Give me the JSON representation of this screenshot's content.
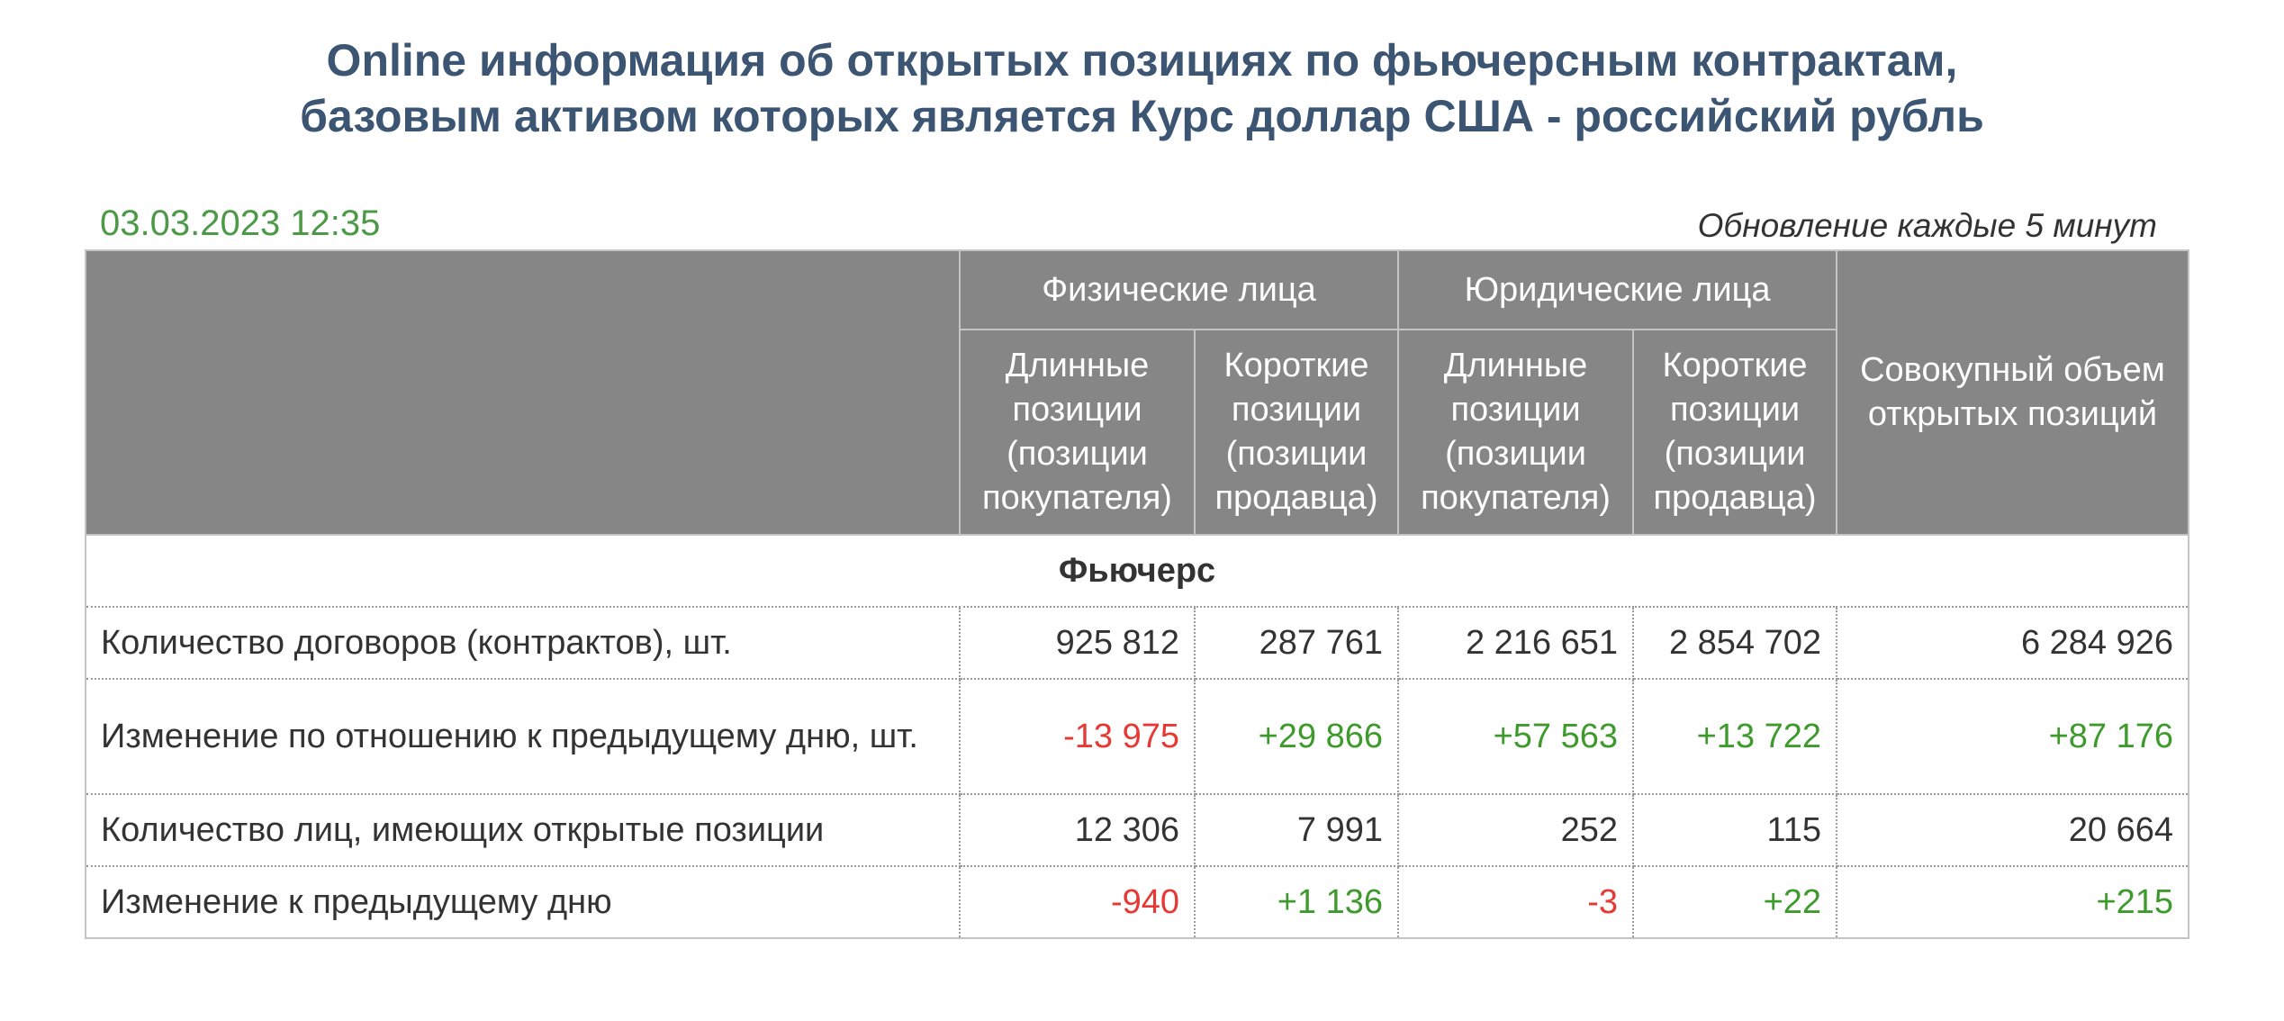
{
  "title": {
    "line1": "Online информация об открытых позициях по фьючерсным контрактам,",
    "line2": "базовым активом которых является Курс доллар США - российский рубль"
  },
  "date": "03.03.2023 12:35",
  "update_note": "Обновление каждые 5 минут",
  "colors": {
    "title": "#3b5573",
    "date": "#4c9a47",
    "header_bg": "#868686",
    "negative": "#e53935",
    "positive": "#3f9a2d"
  },
  "table": {
    "groups": {
      "individuals": "Физические лица",
      "legal": "Юридические лица",
      "total": "Совокупный объем открытых позиций"
    },
    "subheaders": {
      "ind_long": "Длинные позиции (позиции покупателя)",
      "ind_short": "Короткие позиции (позиции продавца)",
      "leg_long": "Длинные позиции (позиции покупателя)",
      "leg_short": "Короткие позиции (позиции продавца)"
    },
    "section": "Фьючерс",
    "rows": [
      {
        "label": "Количество договоров (контрактов), шт.",
        "v": [
          "925 812",
          "287 761",
          "2 216 651",
          "2 854 702",
          "6 284 926"
        ],
        "tone": [
          "neu",
          "neu",
          "neu",
          "neu",
          "neu"
        ]
      },
      {
        "label": "Изменение по отношению к предыдущему дню, шт.",
        "v": [
          "-13 975",
          "+29 866",
          "+57 563",
          "+13 722",
          "+87 176"
        ],
        "tone": [
          "neg",
          "pos",
          "pos",
          "pos",
          "pos"
        ]
      },
      {
        "label": "Количество лиц, имеющих открытые позиции",
        "v": [
          "12 306",
          "7 991",
          "252",
          "115",
          "20 664"
        ],
        "tone": [
          "neu",
          "neu",
          "neu",
          "neu",
          "neu"
        ]
      },
      {
        "label": "Изменение к предыдущему дню",
        "v": [
          "-940",
          "+1 136",
          "-3",
          "+22",
          "+215"
        ],
        "tone": [
          "neg",
          "pos",
          "neg",
          "pos",
          "pos"
        ]
      }
    ]
  }
}
